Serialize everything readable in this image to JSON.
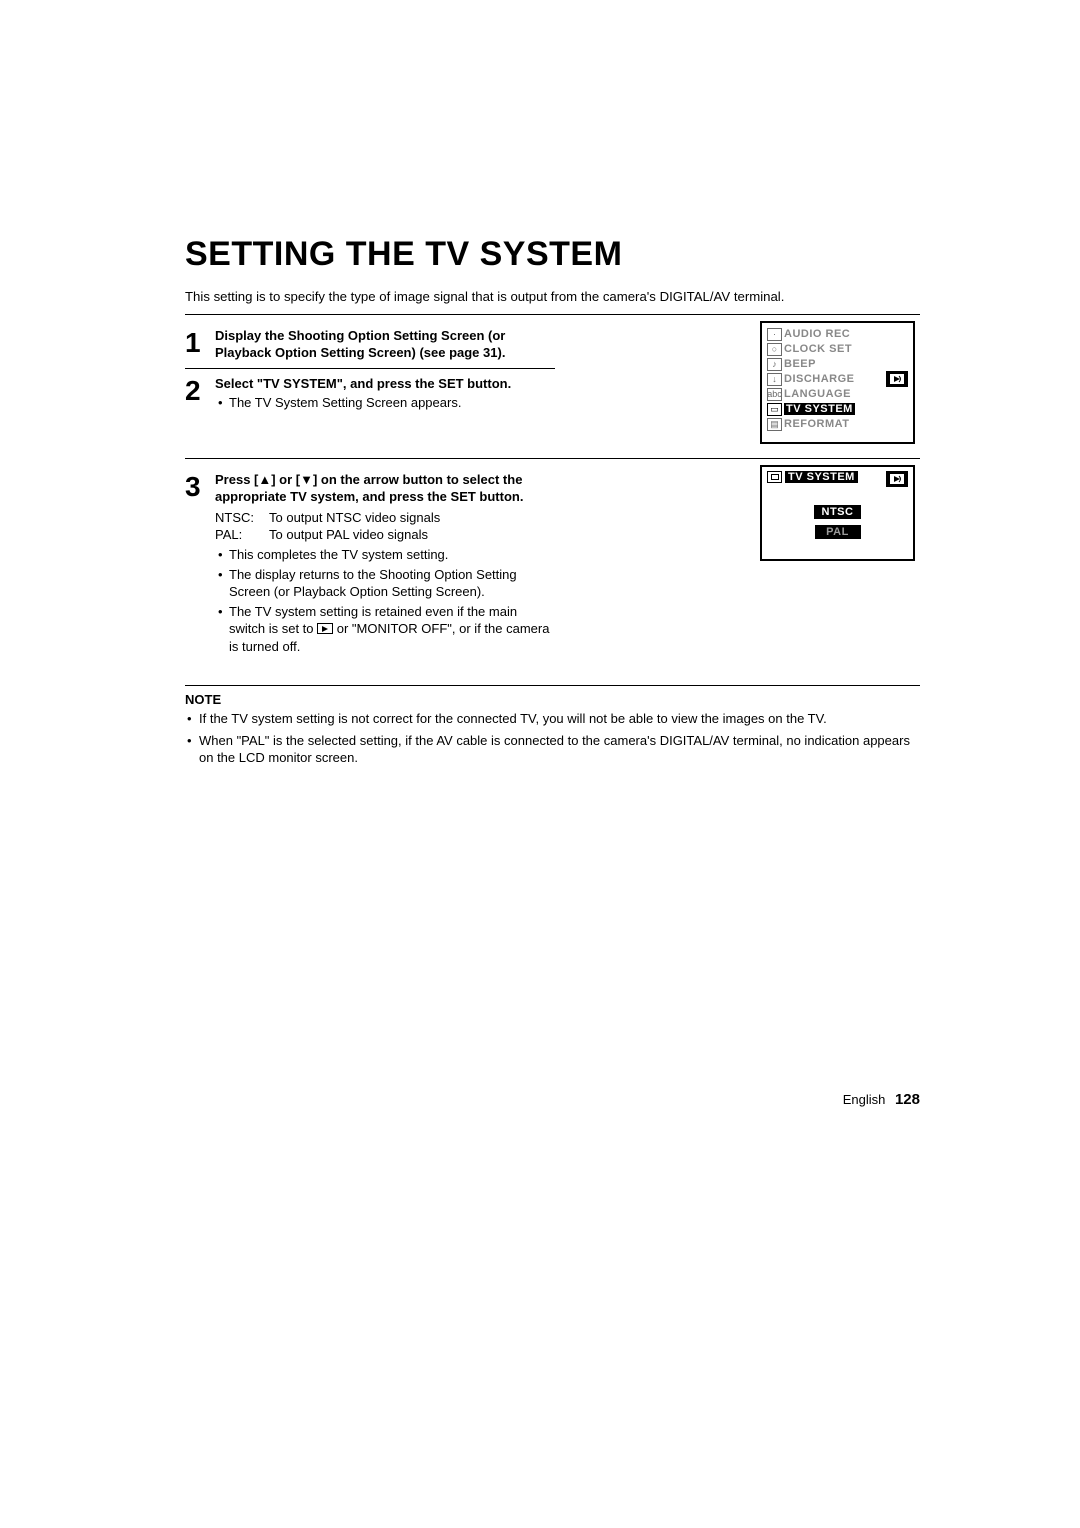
{
  "title": "SETTING THE TV SYSTEM",
  "intro": "This setting is to specify the type of image signal that is output from the camera's DIGITAL/AV terminal.",
  "steps": {
    "s1": {
      "num": "1",
      "heading": "Display the Shooting Option Setting Screen (or Playback Option Setting Screen) (see page 31)."
    },
    "s2": {
      "num": "2",
      "heading": "Select \"TV SYSTEM\", and press the SET button.",
      "bullet1": "The TV System Setting Screen appears."
    },
    "s3": {
      "num": "3",
      "heading": "Press [▲] or [▼] on the arrow button to select the appropriate TV system, and press the SET button.",
      "ntsc_k": "NTSC:",
      "ntsc_v": "To output NTSC video signals",
      "pal_k": "PAL:",
      "pal_v": "To output PAL video signals",
      "b1": "This completes the TV system setting.",
      "b2": "The display returns to the Shooting Option Setting Screen (or Playback Option Setting Screen).",
      "b3_a": "The TV system setting is retained even if the main switch is set to ",
      "b3_b": " or \"MONITOR OFF\", or if the camera is turned off."
    }
  },
  "lcd1": {
    "items": [
      {
        "icon": "·",
        "label": "AUDIO REC"
      },
      {
        "icon": "○",
        "label": "CLOCK SET"
      },
      {
        "icon": "♪",
        "label": "BEEP"
      },
      {
        "icon": "↓",
        "label": "DISCHARGE"
      },
      {
        "icon": "abc",
        "label": "LANGUAGE"
      },
      {
        "icon": "▭",
        "label": "TV SYSTEM"
      },
      {
        "icon": "▤",
        "label": "REFORMAT"
      }
    ],
    "selected_index": 5
  },
  "lcd2": {
    "title": "TV SYSTEM",
    "opt1": "NTSC",
    "opt2": "PAL"
  },
  "note": {
    "title": "NOTE",
    "n1": "If the TV system setting is not correct for the connected TV, you will not be able to view the images on the TV.",
    "n2": "When \"PAL\" is the selected setting, if the AV cable is connected to the camera's DIGITAL/AV terminal, no indication appears on the LCD monitor screen."
  },
  "footer": {
    "lang": "English",
    "page": "128"
  },
  "colors": {
    "text": "#000000",
    "muted": "#888888",
    "bg": "#ffffff"
  }
}
